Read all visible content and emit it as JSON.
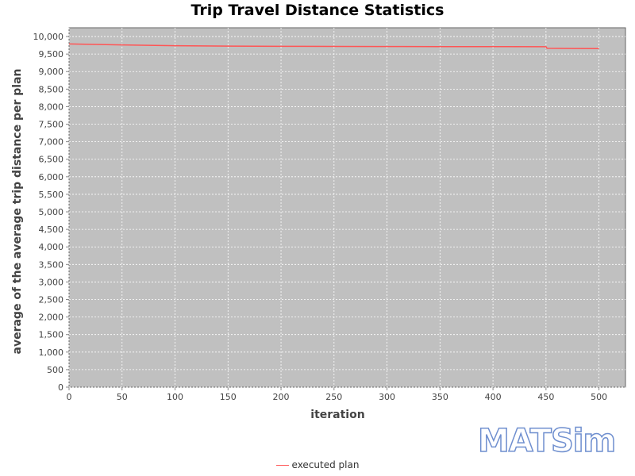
{
  "chart_data": {
    "type": "line",
    "title": "Trip Travel Distance Statistics",
    "xlabel": "iteration",
    "ylabel": "average of the average trip distance per plan",
    "xlim": [
      0,
      525
    ],
    "ylim": [
      0,
      10250
    ],
    "xticks": [
      0,
      50,
      100,
      150,
      200,
      250,
      300,
      350,
      400,
      450,
      500
    ],
    "yticks": [
      0,
      500,
      1000,
      1500,
      2000,
      2500,
      3000,
      3500,
      4000,
      4500,
      5000,
      5500,
      6000,
      6500,
      7000,
      7500,
      8000,
      8500,
      9000,
      9500,
      10000
    ],
    "grid": true,
    "legend_position": "bottom",
    "series": [
      {
        "name": "executed plan",
        "color": "#ff5555",
        "x": [
          0,
          25,
          50,
          75,
          100,
          150,
          200,
          250,
          300,
          350,
          400,
          450,
          451,
          475,
          500
        ],
        "y": [
          9790,
          9775,
          9760,
          9748,
          9738,
          9728,
          9722,
          9718,
          9715,
          9713,
          9712,
          9710,
          9665,
          9660,
          9655
        ]
      }
    ]
  },
  "logo_text": "MATSim"
}
